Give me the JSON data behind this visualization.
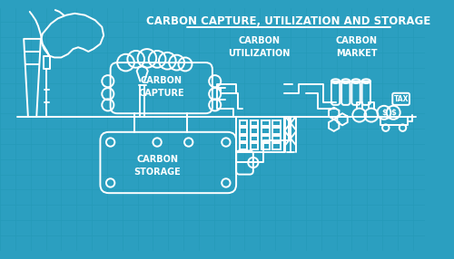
{
  "bg_color": "#2b9fc0",
  "grid_color": "#259ab8",
  "line_color": "#ffffff",
  "line_width": 1.4,
  "title": "CARBON CAPTURE, UTILIZATION AND STORAGE",
  "title_color": "#ffffff",
  "title_fontsize": 8.5,
  "label_fontsize": 6.5,
  "labels": {
    "carbon_capture": "CARBON\nCAPTURE",
    "carbon_storage": "CARBON\nSTORAGE",
    "carbon_utilization": "CARBON\nUTILIZATION",
    "carbon_market": "CARBON\nMARKET"
  }
}
